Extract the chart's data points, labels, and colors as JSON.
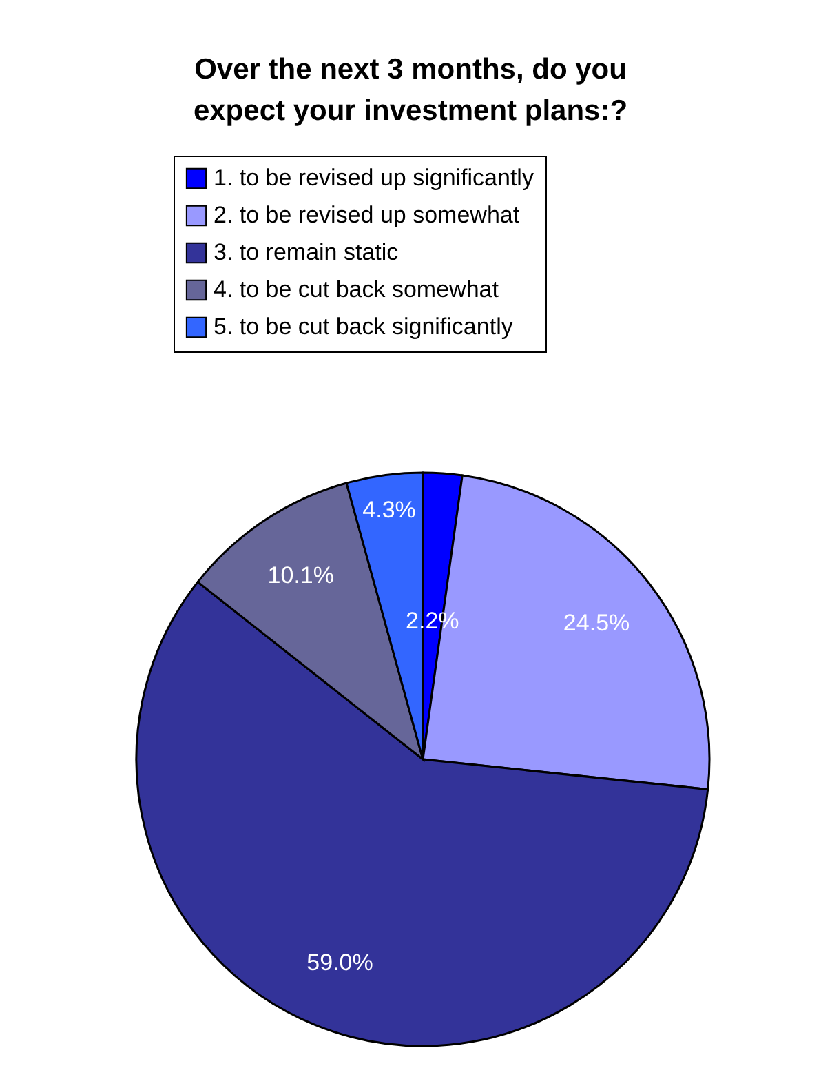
{
  "chart_data": {
    "type": "pie",
    "title": "Over the next 3 months, do you\nexpect your investment plans:?",
    "categories": [
      "1. to be revised up significantly",
      "2. to be revised up somewhat",
      "3. to remain static",
      "4. to be cut back somewhat",
      "5. to be cut back significantly"
    ],
    "values": [
      2.2,
      24.5,
      59.0,
      10.1,
      4.3
    ],
    "value_labels": [
      "2.2%",
      "24.5%",
      "59.0%",
      "10.1%",
      "4.3%"
    ],
    "colors": [
      "#0000ff",
      "#9999ff",
      "#333399",
      "#666699",
      "#3366ff"
    ],
    "legend": "top"
  }
}
